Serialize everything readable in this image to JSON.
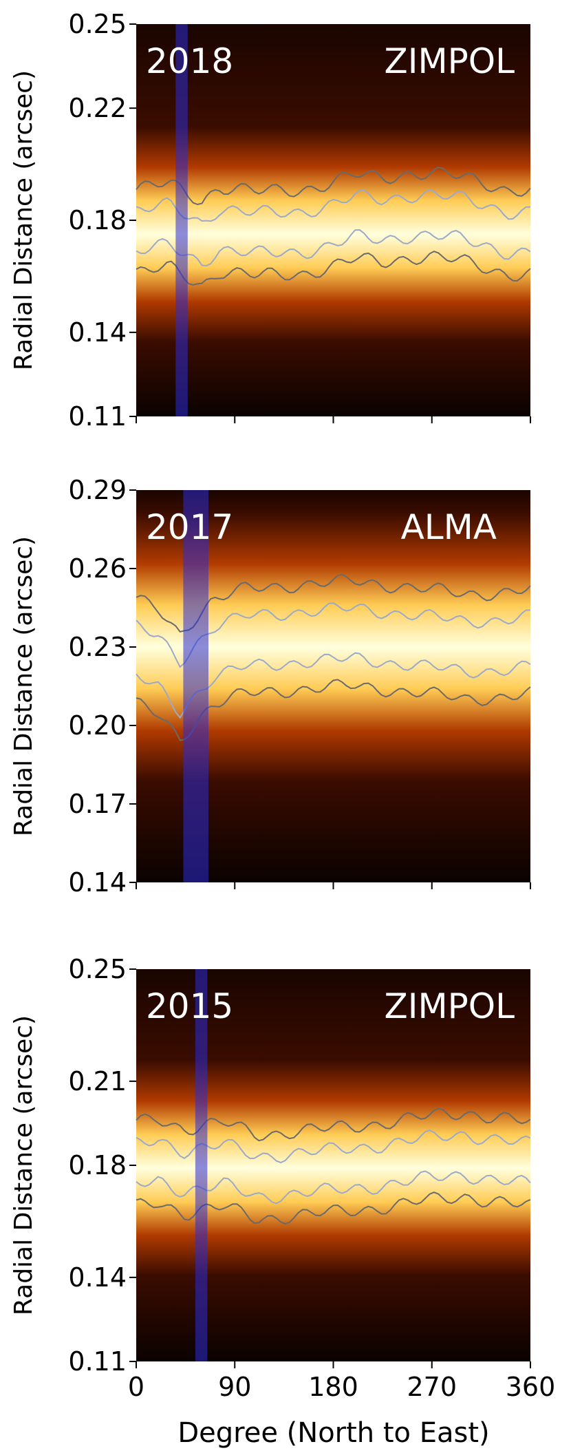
{
  "chart_data": [
    {
      "type": "heatmap",
      "year": "2018",
      "instrument": "ZIMPOL",
      "ylabel": "Radial Distance (arcsec)",
      "ylim": [
        0.11,
        0.25
      ],
      "yticks": [
        "0.25",
        "0.22",
        "0.18",
        "0.14",
        "0.11"
      ],
      "ytick_values": [
        0.25,
        0.22,
        0.18,
        0.14,
        0.11
      ],
      "xlim": [
        0,
        360
      ],
      "xticks": [
        0,
        90,
        180,
        270,
        360
      ],
      "ring_center": 0.175,
      "ring_width": 0.012,
      "highlight_band": [
        36,
        47
      ],
      "ring_profile": [
        [
          0,
          0.176
        ],
        [
          30,
          0.178
        ],
        [
          60,
          0.172
        ],
        [
          75,
          0.177
        ],
        [
          110,
          0.175
        ],
        [
          150,
          0.176
        ],
        [
          175,
          0.178
        ],
        [
          200,
          0.181
        ],
        [
          225,
          0.18
        ],
        [
          250,
          0.182
        ],
        [
          270,
          0.182
        ],
        [
          300,
          0.18
        ],
        [
          320,
          0.178
        ],
        [
          340,
          0.176
        ],
        [
          360,
          0.176
        ]
      ]
    },
    {
      "type": "heatmap",
      "year": "2017",
      "instrument": "ALMA",
      "ylabel": "Radial Distance (arcsec)",
      "ylim": [
        0.14,
        0.29
      ],
      "yticks": [
        "0.29",
        "0.26",
        "0.23",
        "0.20",
        "0.17",
        "0.14"
      ],
      "ytick_values": [
        0.29,
        0.26,
        0.23,
        0.2,
        0.17,
        0.14
      ],
      "xlim": [
        0,
        360
      ],
      "xticks": [
        0,
        90,
        180,
        270,
        360
      ],
      "ring_center": 0.23,
      "ring_width": 0.016,
      "highlight_band": [
        43,
        66
      ],
      "ring_profile": [
        [
          0,
          0.228
        ],
        [
          20,
          0.224
        ],
        [
          40,
          0.215
        ],
        [
          55,
          0.222
        ],
        [
          70,
          0.228
        ],
        [
          100,
          0.232
        ],
        [
          150,
          0.234
        ],
        [
          200,
          0.235
        ],
        [
          250,
          0.233
        ],
        [
          300,
          0.23
        ],
        [
          330,
          0.231
        ],
        [
          360,
          0.232
        ]
      ]
    },
    {
      "type": "heatmap",
      "year": "2015",
      "instrument": "ZIMPOL",
      "ylabel": "Radial Distance (arcsec)",
      "xlabel": "Degree (North to East)",
      "ylim": [
        0.11,
        0.25
      ],
      "yticks": [
        "0.25",
        "0.21",
        "0.18",
        "0.14",
        "0.11"
      ],
      "ytick_values": [
        0.25,
        0.21,
        0.18,
        0.14,
        0.11
      ],
      "xlim": [
        0,
        360
      ],
      "xticks": [
        0,
        90,
        180,
        270,
        360
      ],
      "xtick_labels": [
        "0",
        "90",
        "180",
        "270",
        "360"
      ],
      "ring_center": 0.179,
      "ring_width": 0.012,
      "highlight_band": [
        54,
        65
      ],
      "ring_profile": [
        [
          0,
          0.18
        ],
        [
          20,
          0.182
        ],
        [
          45,
          0.178
        ],
        [
          60,
          0.179
        ],
        [
          80,
          0.18
        ],
        [
          110,
          0.176
        ],
        [
          140,
          0.177
        ],
        [
          180,
          0.178
        ],
        [
          220,
          0.18
        ],
        [
          260,
          0.182
        ],
        [
          300,
          0.184
        ],
        [
          330,
          0.182
        ],
        [
          360,
          0.18
        ]
      ]
    }
  ],
  "colors": {
    "bg_dark": "#000000",
    "heat_mid": "#b03a00",
    "heat_bright": "#ffcc55",
    "heat_peak": "#ffffdd",
    "contour_outer": "#6a6a6a",
    "contour_inner": "#9aaac8",
    "band": "#2b2bd6"
  }
}
